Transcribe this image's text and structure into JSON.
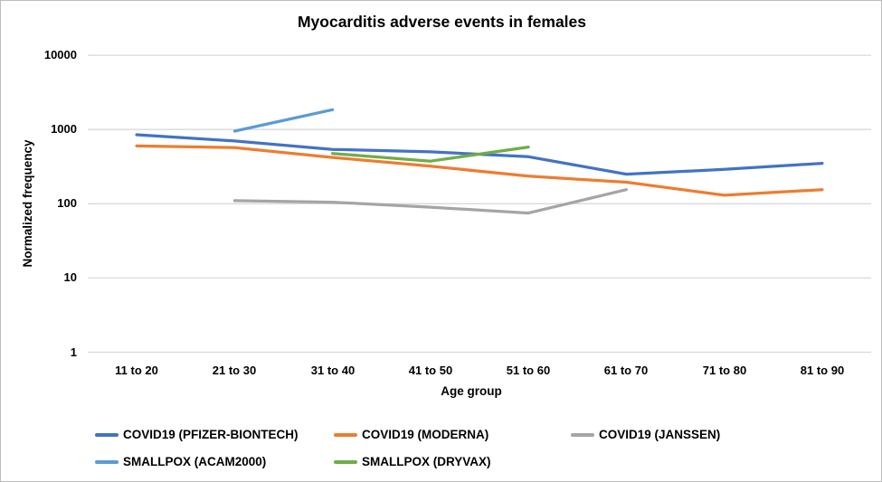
{
  "chart_data": {
    "type": "line",
    "title": "Myocarditis adverse events in females",
    "xlabel": "Age group",
    "ylabel": "Normalized frequency",
    "y_scale": "log10",
    "ylim": [
      1,
      10000
    ],
    "yticks": [
      "1",
      "10",
      "100",
      "1000",
      "10000"
    ],
    "grid": true,
    "legend_position": "bottom-left",
    "categories": [
      "11 to 20",
      "21 to 30",
      "31 to 40",
      "41 to 50",
      "51 to 60",
      "61 to 70",
      "71 to 80",
      "81 to 90"
    ],
    "series": [
      {
        "name": "COVID19 (PFIZER-BIONTECH)",
        "color": "#4472C4",
        "values": [
          850,
          700,
          540,
          500,
          430,
          250,
          290,
          350
        ]
      },
      {
        "name": "COVID19 (MODERNA)",
        "color": "#ED7D31",
        "values": [
          600,
          570,
          420,
          320,
          235,
          195,
          130,
          155
        ]
      },
      {
        "name": "COVID19 (JANSSEN)",
        "color": "#A5A5A5",
        "values": [
          null,
          110,
          105,
          90,
          75,
          155,
          null,
          null
        ]
      },
      {
        "name": "SMALLPOX (ACAM2000)",
        "color": "#5B9BD5",
        "values": [
          null,
          950,
          1850,
          null,
          null,
          null,
          null,
          null
        ]
      },
      {
        "name": "SMALLPOX (DRYVAX)",
        "color": "#70AD47",
        "values": [
          null,
          null,
          475,
          375,
          580,
          null,
          null,
          null
        ]
      }
    ]
  }
}
